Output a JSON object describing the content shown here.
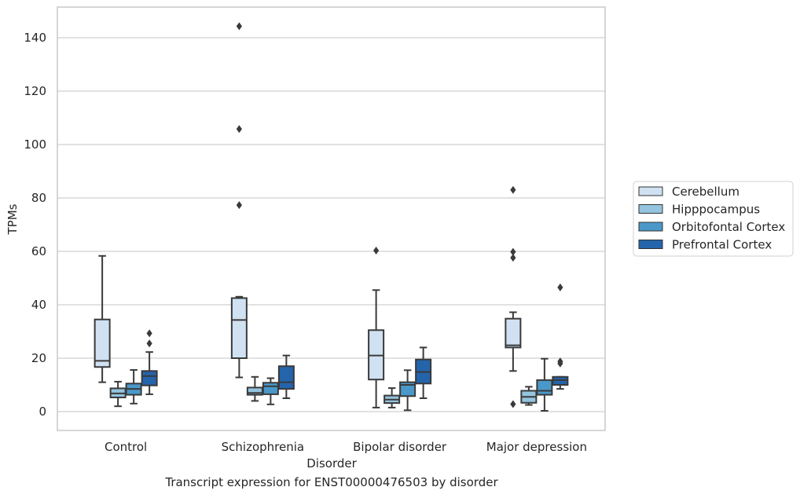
{
  "caption": "Transcript expression for ENST00000476503 by disorder",
  "chart_data": {
    "type": "box",
    "title": "",
    "xlabel": "Disorder",
    "ylabel": "TPMs",
    "ylim": [
      -7,
      152
    ],
    "yticks": [
      0,
      20,
      40,
      60,
      80,
      100,
      120,
      140
    ],
    "grid": "horizontal",
    "legend_placement": "right, outside plot",
    "categories": [
      "Control",
      "Schizophrenia",
      "Bipolar disorder",
      "Major depression"
    ],
    "series": [
      {
        "name": "Cerebellum",
        "color": "#d0e1f2",
        "boxes": [
          {
            "whisker_low": 11,
            "q1": 16.7,
            "median": 19,
            "q3": 34.5,
            "whisker_high": 58.3,
            "outliers": []
          },
          {
            "whisker_low": 12.8,
            "q1": 20,
            "median": 34.3,
            "q3": 42.5,
            "whisker_high": 43,
            "outliers": [
              144.3,
              105.8,
              77.3
            ]
          },
          {
            "whisker_low": 1.5,
            "q1": 12,
            "median": 21,
            "q3": 30.5,
            "whisker_high": 45.5,
            "outliers": [
              60.3
            ]
          },
          {
            "whisker_low": 15.2,
            "q1": 24,
            "median": 24.8,
            "q3": 34.8,
            "whisker_high": 37.2,
            "outliers": [
              83,
              59.8,
              57.6,
              2.8
            ]
          }
        ]
      },
      {
        "name": "Hipppocampus",
        "color": "#94c4df",
        "boxes": [
          {
            "whisker_low": 2,
            "q1": 5.3,
            "median": 6.8,
            "q3": 8.7,
            "whisker_high": 11.2,
            "outliers": []
          },
          {
            "whisker_low": 4,
            "q1": 6.3,
            "median": 7,
            "q3": 9,
            "whisker_high": 13,
            "outliers": []
          },
          {
            "whisker_low": 1.5,
            "q1": 3.2,
            "median": 4.5,
            "q3": 6,
            "whisker_high": 8.8,
            "outliers": []
          },
          {
            "whisker_low": 2.5,
            "q1": 3.3,
            "median": 5.5,
            "q3": 7.8,
            "whisker_high": 9.3,
            "outliers": []
          }
        ]
      },
      {
        "name": "Orbitofontal Cortex",
        "color": "#4a98c9",
        "boxes": [
          {
            "whisker_low": 3,
            "q1": 6.3,
            "median": 8.5,
            "q3": 10.5,
            "whisker_high": 15.6,
            "outliers": []
          },
          {
            "whisker_low": 2.7,
            "q1": 6.5,
            "median": 9.5,
            "q3": 10.8,
            "whisker_high": 12.5,
            "outliers": []
          },
          {
            "whisker_low": 0.5,
            "q1": 5.8,
            "median": 10,
            "q3": 11,
            "whisker_high": 15.5,
            "outliers": []
          },
          {
            "whisker_low": 0.3,
            "q1": 6.3,
            "median": 7.8,
            "q3": 11.8,
            "whisker_high": 19.8,
            "outliers": []
          }
        ]
      },
      {
        "name": "Prefrontal Cortex",
        "color": "#2464ab",
        "boxes": [
          {
            "whisker_low": 6.5,
            "q1": 9.8,
            "median": 13.3,
            "q3": 15.2,
            "whisker_high": 22.3,
            "outliers": [
              29.3,
              25.5
            ]
          },
          {
            "whisker_low": 5,
            "q1": 8.5,
            "median": 11,
            "q3": 17,
            "whisker_high": 21,
            "outliers": []
          },
          {
            "whisker_low": 5,
            "q1": 10.5,
            "median": 14.8,
            "q3": 19.5,
            "whisker_high": 24,
            "outliers": []
          },
          {
            "whisker_low": 8.5,
            "q1": 10,
            "median": 11.8,
            "q3": 13,
            "whisker_high": 13,
            "outliers": [
              46.5,
              18.8,
              18
            ]
          }
        ]
      }
    ]
  }
}
